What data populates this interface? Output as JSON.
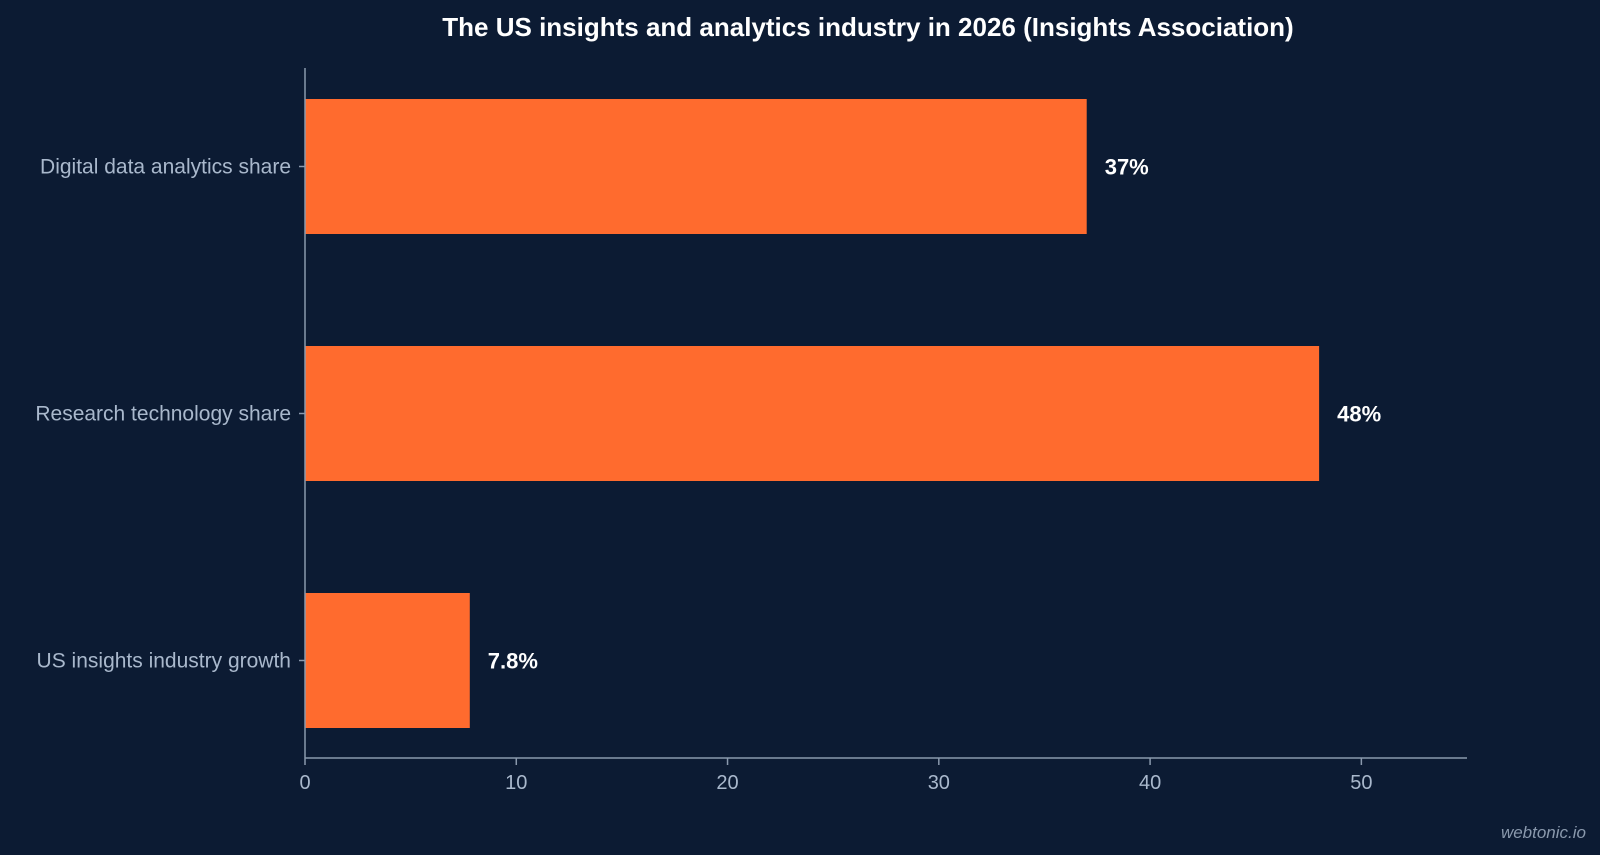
{
  "chart_data": {
    "type": "bar",
    "orientation": "horizontal",
    "title": "The US insights and analytics industry in 2026 (Insights Association)",
    "categories": [
      "Digital data analytics share",
      "Research technology share",
      "US insights industry growth"
    ],
    "values": [
      37,
      48,
      7.8
    ],
    "value_labels": [
      "37%",
      "48%",
      "7.8%"
    ],
    "xlabel": "",
    "ylabel": "",
    "xlim": [
      0,
      55
    ],
    "xticks": [
      0,
      10,
      20,
      30,
      40,
      50
    ],
    "grid": false,
    "legend": "none",
    "bar_color": "#ff6b2e",
    "background_color": "#0c1b33"
  },
  "watermark": "webtonic.io"
}
